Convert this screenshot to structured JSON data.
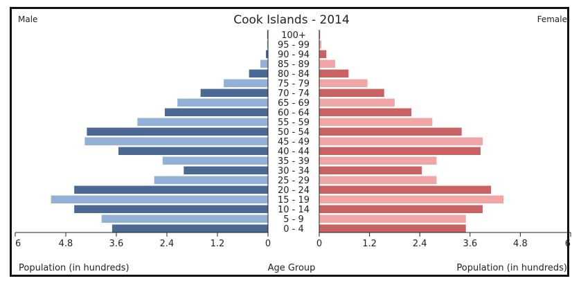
{
  "chart_data": {
    "type": "bar",
    "title": "Cook Islands - 2014",
    "left_label": "Male",
    "right_label": "Female",
    "xlabel_left": "Population (in hundreds)",
    "xlabel_center": "Age Group",
    "xlabel_right": "Population (in hundreds)",
    "xlim": [
      0,
      6
    ],
    "x_ticks_left": [
      "6",
      "4.8",
      "3.6",
      "2.4",
      "1.2",
      "0"
    ],
    "x_ticks_right": [
      "0",
      "1.2",
      "2.4",
      "3.6",
      "4.8",
      "6"
    ],
    "categories": [
      "100+",
      "95 - 99",
      "90 - 94",
      "85 - 89",
      "80 - 84",
      "75 - 79",
      "70 - 74",
      "65 - 69",
      "60 - 64",
      "55 - 59",
      "50 - 54",
      "45 - 49",
      "40 - 44",
      "35 - 39",
      "30 - 34",
      "25 - 29",
      "20 - 24",
      "15 - 19",
      "10 - 14",
      "5 - 9",
      "0 - 4"
    ],
    "series": [
      {
        "name": "Male",
        "values": [
          0.02,
          0.02,
          0.05,
          0.18,
          0.45,
          1.05,
          1.6,
          2.15,
          2.45,
          3.1,
          4.3,
          4.35,
          3.55,
          2.5,
          2.0,
          2.7,
          4.6,
          5.15,
          4.6,
          3.95,
          3.7
        ]
      },
      {
        "name": "Female",
        "values": [
          0.02,
          0.05,
          0.17,
          0.38,
          0.7,
          1.15,
          1.55,
          1.8,
          2.2,
          2.7,
          3.4,
          3.9,
          3.85,
          2.8,
          2.45,
          2.8,
          4.1,
          4.4,
          3.9,
          3.5,
          3.5
        ]
      }
    ],
    "colors": {
      "male_dark": "#4a6a93",
      "male_light": "#93b1d6",
      "female_dark": "#c96363",
      "female_light": "#f0a6a6"
    },
    "grid": false,
    "legend": "none"
  }
}
